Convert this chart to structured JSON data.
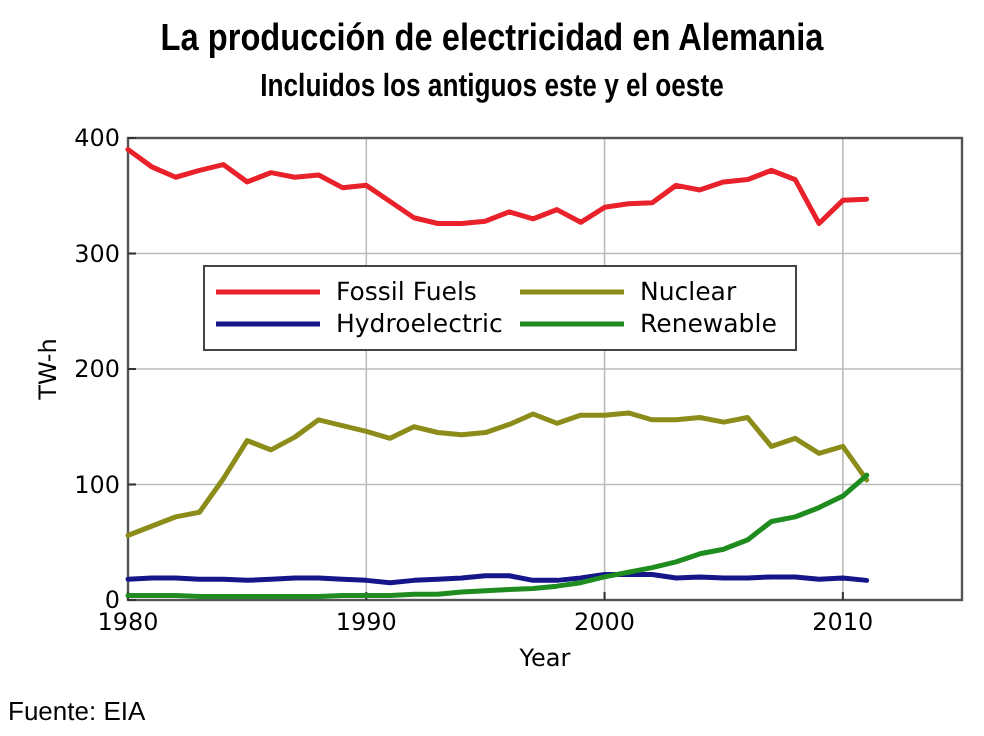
{
  "chart_data": {
    "type": "line",
    "title": "La producción de electricidad en Alemania",
    "subtitle": "Incluidos los antiguos este y el oeste",
    "xlabel": "Year",
    "ylabel": "TW-h",
    "annotations": [
      "Fuente: EIA"
    ],
    "x": [
      1980,
      1981,
      1982,
      1983,
      1984,
      1985,
      1986,
      1987,
      1988,
      1989,
      1990,
      1991,
      1992,
      1993,
      1994,
      1995,
      1996,
      1997,
      1998,
      1999,
      2000,
      2001,
      2002,
      2003,
      2004,
      2005,
      2006,
      2007,
      2008,
      2009,
      2010,
      2011
    ],
    "series": [
      {
        "name": "Fossil Fuels",
        "color": "#e8212a",
        "values": [
          390,
          375,
          366,
          372,
          377,
          362,
          370,
          366,
          368,
          357,
          359,
          345,
          331,
          326,
          326,
          328,
          336,
          330,
          338,
          327,
          340,
          343,
          344,
          359,
          355,
          362,
          364,
          372,
          364,
          326,
          346,
          347
        ]
      },
      {
        "name": "Hydroelectric",
        "color": "#16168a",
        "values": [
          18,
          19,
          19,
          18,
          18,
          17,
          18,
          19,
          19,
          18,
          17,
          15,
          17,
          18,
          19,
          21,
          21,
          17,
          17,
          19,
          22,
          22,
          22,
          19,
          20,
          19,
          19,
          20,
          20,
          18,
          19,
          17
        ]
      },
      {
        "name": "Nuclear",
        "color": "#8c8c1a",
        "values": [
          56,
          64,
          72,
          76,
          105,
          138,
          130,
          141,
          156,
          151,
          146,
          140,
          150,
          145,
          143,
          145,
          152,
          161,
          153,
          160,
          160,
          162,
          156,
          156,
          158,
          154,
          158,
          133,
          140,
          127,
          133,
          104
        ]
      },
      {
        "name": "Renewable",
        "color": "#1e8c1e",
        "values": [
          4,
          4,
          4,
          3,
          3,
          3,
          3,
          3,
          3,
          4,
          4,
          4,
          5,
          5,
          7,
          8,
          9,
          10,
          12,
          15,
          20,
          24,
          28,
          33,
          40,
          44,
          52,
          68,
          72,
          80,
          90,
          108
        ]
      }
    ],
    "xlim": [
      1980,
      2015
    ],
    "xticks": [
      1980,
      1990,
      2000,
      2010
    ],
    "ylim": [
      0,
      400
    ],
    "yticks": [
      0,
      100,
      200,
      300,
      400
    ],
    "grid": true,
    "legend": "center",
    "line_style": "solid",
    "marker": "none"
  }
}
